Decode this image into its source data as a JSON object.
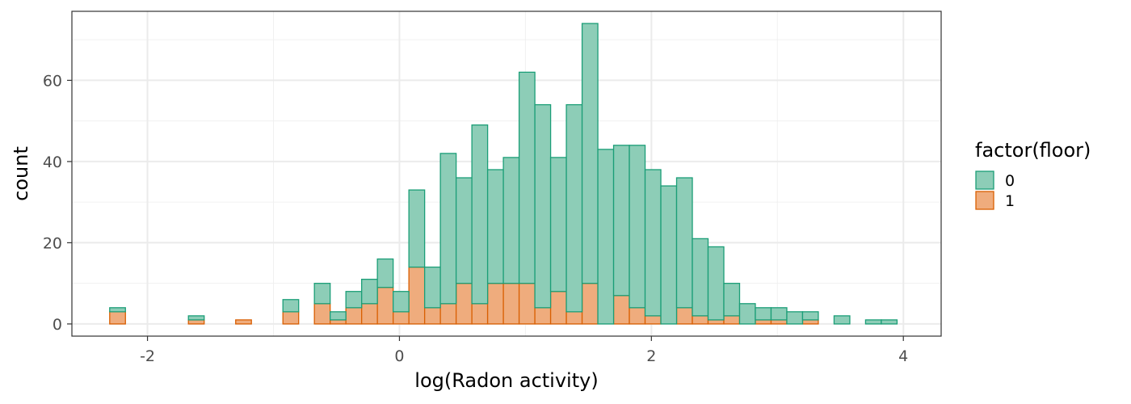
{
  "chart_data": {
    "type": "bar",
    "stacked": true,
    "xlabel": "log(Radon activity)",
    "ylabel": "count",
    "xlim": [
      -2.6,
      4.3
    ],
    "ylim": [
      -3,
      77
    ],
    "x_ticks": [
      -2,
      0,
      2,
      4
    ],
    "x_tick_labels": [
      "-2",
      "0",
      "2",
      "4"
    ],
    "y_ticks": [
      0,
      20,
      40,
      60
    ],
    "y_tick_labels": [
      "0",
      "20",
      "40",
      "60"
    ],
    "grid": true,
    "bin_width": 0.125,
    "x_bin_starts": [
      -2.3,
      -2.175,
      -2.05,
      -1.925,
      -1.8,
      -1.675,
      -1.55,
      -1.425,
      -1.3,
      -1.175,
      -1.05,
      -0.925,
      -0.8,
      -0.675,
      -0.55,
      -0.425,
      -0.3,
      -0.175,
      -0.05,
      0.075,
      0.2,
      0.325,
      0.45,
      0.575,
      0.7,
      0.825,
      0.95,
      1.075,
      1.2,
      1.325,
      1.45,
      1.575,
      1.7,
      1.825,
      1.95,
      2.075,
      2.2,
      2.325,
      2.45,
      2.575,
      2.7,
      2.825,
      2.95,
      3.075,
      3.2,
      3.325,
      3.45,
      3.575,
      3.7,
      3.825
    ],
    "legend": {
      "title": "factor(floor)",
      "position": "right",
      "entries": [
        "0",
        "1"
      ]
    },
    "series": [
      {
        "name": "1",
        "fill": "#EFAC7D",
        "stroke": "#D95F02",
        "values": [
          3,
          0,
          0,
          0,
          0,
          1,
          0,
          0,
          1,
          0,
          0,
          3,
          0,
          5,
          1,
          4,
          5,
          9,
          3,
          14,
          4,
          5,
          10,
          5,
          10,
          10,
          10,
          4,
          8,
          3,
          10,
          0,
          7,
          4,
          2,
          0,
          4,
          2,
          1,
          2,
          0,
          1,
          1,
          0,
          1,
          0,
          0,
          0,
          0,
          0
        ]
      },
      {
        "name": "0",
        "fill": "#8DCDB7",
        "stroke": "#1B9E77",
        "values": [
          1,
          0,
          0,
          0,
          0,
          1,
          0,
          0,
          0,
          0,
          0,
          3,
          0,
          5,
          2,
          4,
          6,
          7,
          5,
          19,
          10,
          37,
          26,
          44,
          28,
          31,
          52,
          50,
          33,
          51,
          64,
          43,
          37,
          40,
          36,
          34,
          32,
          19,
          18,
          8,
          5,
          3,
          3,
          3,
          2,
          0,
          2,
          0,
          1,
          1
        ]
      }
    ]
  }
}
